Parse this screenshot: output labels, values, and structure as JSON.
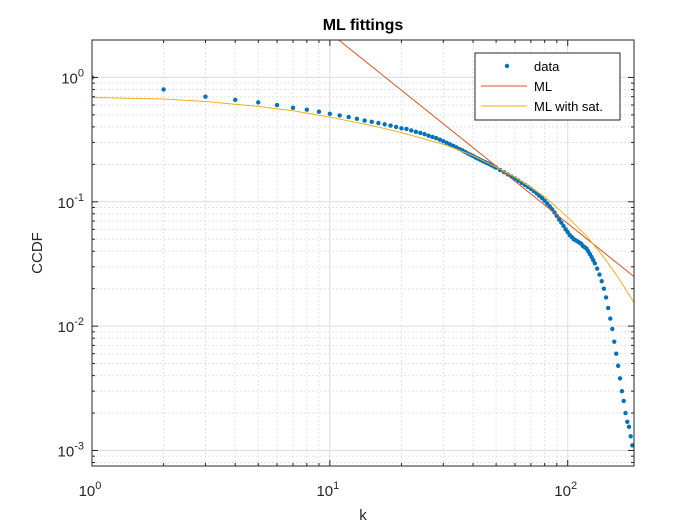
{
  "chart_data": {
    "type": "line",
    "title": "ML fittings",
    "xlabel": "k",
    "ylabel": "CCDF",
    "x_scale": "log",
    "y_scale": "log",
    "xlim": [
      1,
      190
    ],
    "ylim": [
      0.00075,
      2.0
    ],
    "grid": true,
    "minor_grid": true,
    "legend_position": "top-right",
    "x_ticks": [
      {
        "value": 1,
        "base": "10",
        "exp": "0"
      },
      {
        "value": 10,
        "base": "10",
        "exp": "1"
      },
      {
        "value": 100,
        "base": "10",
        "exp": "2"
      }
    ],
    "y_ticks": [
      {
        "value": 0.001,
        "base": "10",
        "exp": "-3"
      },
      {
        "value": 0.01,
        "base": "10",
        "exp": "-2"
      },
      {
        "value": 0.1,
        "base": "10",
        "exp": "-1"
      },
      {
        "value": 1,
        "base": "10",
        "exp": "0"
      }
    ],
    "series": [
      {
        "name": "data",
        "kind": "scatter",
        "color": "#0072BD",
        "x": [
          1,
          2,
          3,
          4,
          5,
          6,
          7,
          8,
          9,
          10,
          11,
          12,
          13,
          14,
          15,
          16,
          17,
          18,
          19,
          20,
          21,
          22,
          23,
          24,
          25,
          26,
          27,
          28,
          29,
          30,
          31,
          32,
          33,
          34,
          35,
          36,
          37,
          38,
          39,
          40,
          41,
          42,
          43,
          44,
          45,
          46,
          47,
          48,
          49,
          50,
          52,
          54,
          56,
          58,
          60,
          62,
          64,
          66,
          68,
          70,
          72,
          74,
          76,
          78,
          80,
          82,
          84,
          86,
          88,
          90,
          92,
          94,
          96,
          98,
          100,
          102,
          104,
          106,
          108,
          110,
          112,
          114,
          116,
          118,
          120,
          122,
          124,
          126,
          128,
          130,
          133,
          136,
          139,
          142,
          145,
          148,
          151,
          154,
          157,
          160,
          163,
          166,
          169,
          172,
          175,
          178,
          181,
          184,
          187
        ],
        "y": [
          1.0,
          0.8,
          0.7,
          0.66,
          0.63,
          0.6,
          0.57,
          0.55,
          0.53,
          0.51,
          0.495,
          0.48,
          0.465,
          0.45,
          0.44,
          0.43,
          0.42,
          0.41,
          0.4,
          0.39,
          0.385,
          0.375,
          0.365,
          0.358,
          0.35,
          0.34,
          0.332,
          0.325,
          0.316,
          0.307,
          0.298,
          0.29,
          0.282,
          0.274,
          0.266,
          0.259,
          0.252,
          0.245,
          0.239,
          0.233,
          0.227,
          0.222,
          0.217,
          0.212,
          0.208,
          0.204,
          0.2,
          0.196,
          0.192,
          0.188,
          0.18,
          0.173,
          0.166,
          0.16,
          0.154,
          0.148,
          0.142,
          0.137,
          0.132,
          0.127,
          0.122,
          0.117,
          0.112,
          0.107,
          0.102,
          0.097,
          0.092,
          0.087,
          0.082,
          0.077,
          0.072,
          0.068,
          0.064,
          0.06,
          0.057,
          0.054,
          0.052,
          0.05,
          0.049,
          0.048,
          0.047,
          0.046,
          0.044,
          0.043,
          0.042,
          0.04,
          0.038,
          0.036,
          0.034,
          0.032,
          0.029,
          0.026,
          0.023,
          0.02,
          0.017,
          0.014,
          0.0115,
          0.0095,
          0.0075,
          0.006,
          0.0048,
          0.0038,
          0.003,
          0.0025,
          0.002,
          0.0017,
          0.00155,
          0.0013,
          0.0011
        ]
      },
      {
        "name": "ML",
        "kind": "line",
        "color": "#D95319",
        "x": [
          10.9,
          190
        ],
        "y": [
          2.0,
          0.025
        ]
      },
      {
        "name": "ML with sat.",
        "kind": "line",
        "color": "#EDB120",
        "x": [
          1,
          2,
          3,
          5,
          7,
          10,
          15,
          20,
          30,
          40,
          50,
          60,
          80,
          100,
          120,
          140,
          160,
          190
        ],
        "y": [
          0.69,
          0.67,
          0.64,
          0.585,
          0.54,
          0.48,
          0.41,
          0.36,
          0.29,
          0.235,
          0.19,
          0.158,
          0.11,
          0.075,
          0.053,
          0.037,
          0.026,
          0.0155
        ]
      }
    ]
  }
}
